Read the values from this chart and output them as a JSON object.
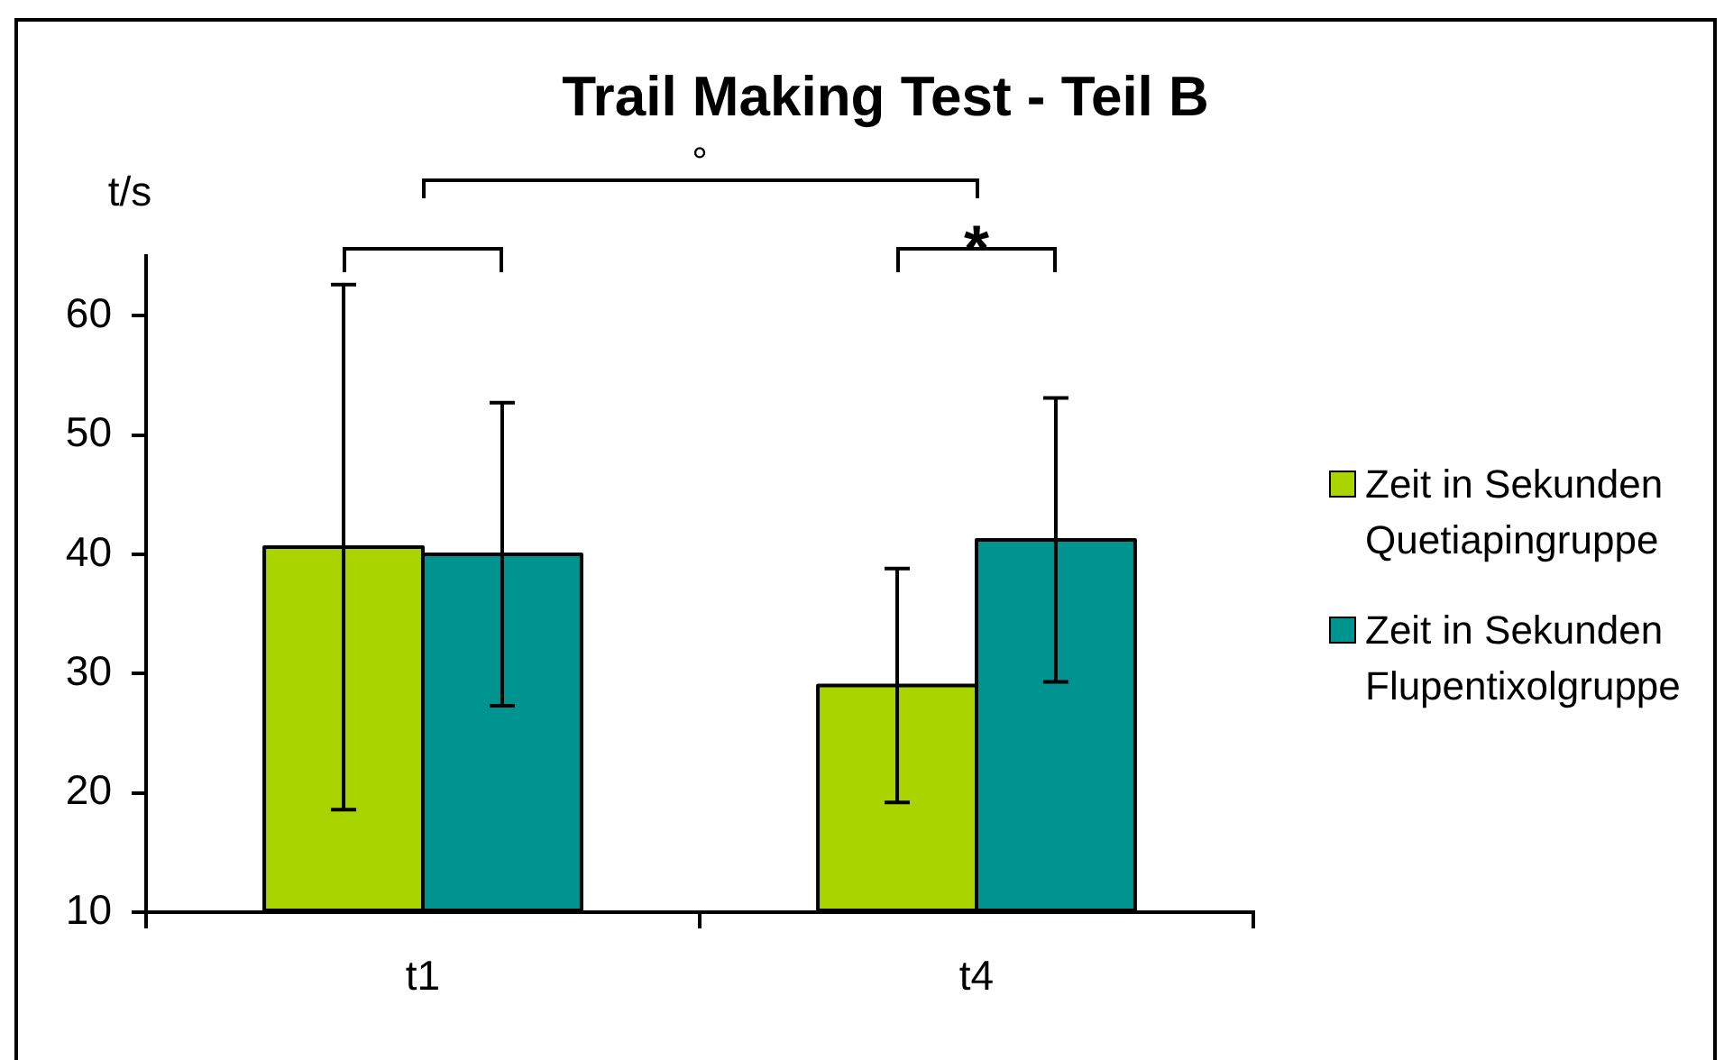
{
  "chart_data": {
    "type": "bar",
    "title": "Trail Making Test - Teil B",
    "ylabel": "t/s",
    "categories": [
      "t1",
      "t4"
    ],
    "series": [
      {
        "name": "Zeit in Sekunden Quetiapingruppe",
        "color": "#aad400",
        "values": [
          40.6,
          29.0
        ],
        "errors": [
          22,
          9.8
        ]
      },
      {
        "name": "Zeit in Sekunden Flupentixolgruppe",
        "color": "#009490",
        "values": [
          40.0,
          41.2
        ],
        "errors": [
          12.7,
          11.9
        ]
      }
    ],
    "ylim": [
      10,
      65
    ],
    "yticks": [
      10,
      20,
      30,
      40,
      50,
      60
    ],
    "grid": false,
    "legend": "right",
    "annotations": [
      "°",
      "*"
    ]
  }
}
